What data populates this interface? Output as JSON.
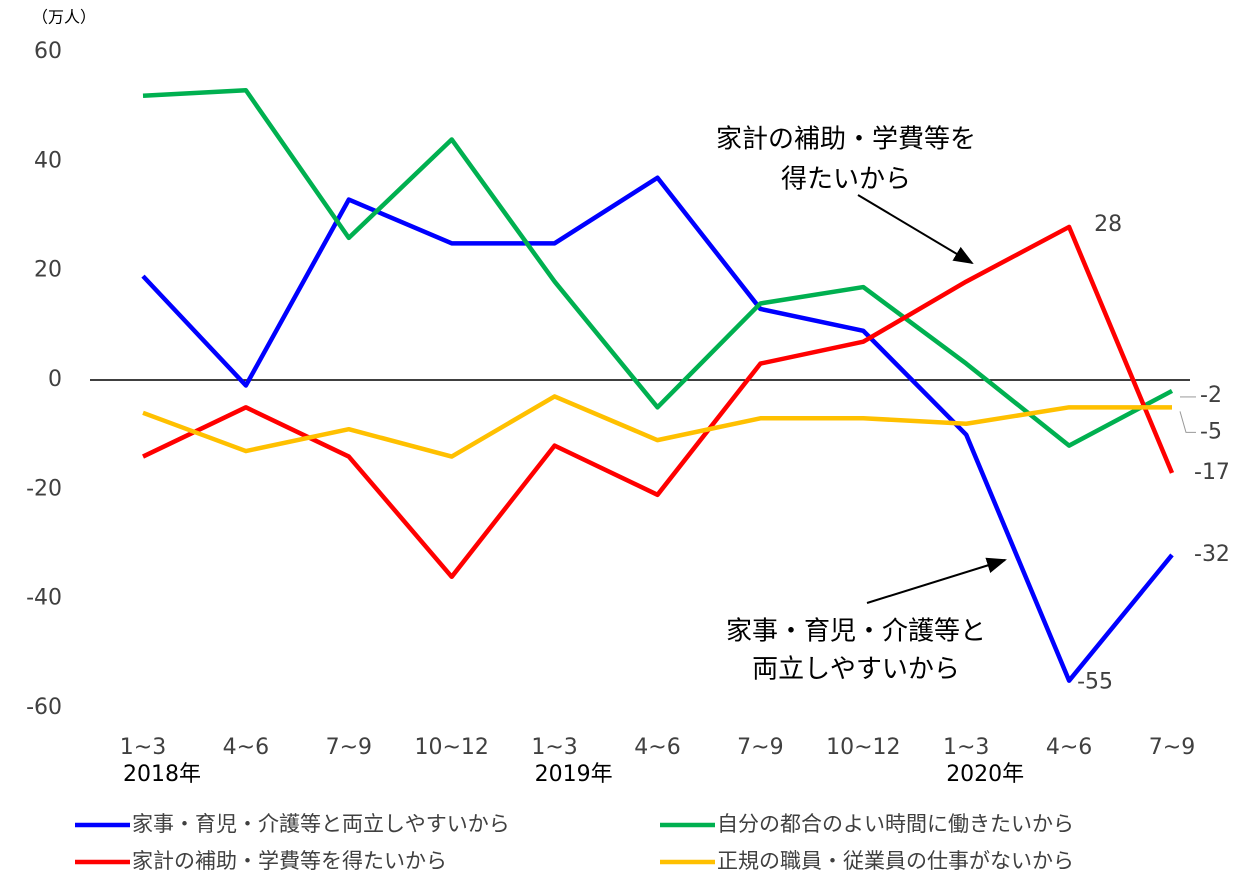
{
  "chart_data": {
    "type": "line",
    "unit_label": "（万人）",
    "categories": [
      "1~3",
      "4~6",
      "7~9",
      "10~12",
      "1~3",
      "4~6",
      "7~9",
      "10~12",
      "1~3",
      "4~6",
      "7~9"
    ],
    "year_labels": [
      "2018年",
      null,
      null,
      null,
      "2019年",
      null,
      null,
      null,
      "2020年",
      null,
      null
    ],
    "ylim": [
      -60,
      60
    ],
    "yticks": [
      -60,
      -40,
      -20,
      0,
      20,
      40,
      60
    ],
    "series": [
      {
        "name": "家事・育児・介護等と両立しやすいから",
        "color": "#0000ff",
        "values": [
          19,
          -1,
          33,
          25,
          25,
          37,
          13,
          9,
          -10,
          -55,
          -32
        ]
      },
      {
        "name": "自分の都合のよい時間に働きたいから",
        "color": "#00b050",
        "values": [
          52,
          53,
          26,
          44,
          18,
          -5,
          14,
          17,
          3,
          -12,
          -2
        ]
      },
      {
        "name": "家計の補助・学費等を得たいから",
        "color": "#ff0000",
        "values": [
          -14,
          -5,
          -14,
          -36,
          -12,
          -21,
          3,
          7,
          18,
          28,
          -17
        ]
      },
      {
        "name": "正規の職員・従業員の仕事がないから",
        "color": "#ffc000",
        "values": [
          -6,
          -13,
          -9,
          -14,
          -3,
          -11,
          -7,
          -7,
          -8,
          -5,
          -5
        ]
      }
    ],
    "annotations": [
      {
        "lines": [
          "家計の補助・学費等を",
          "得たいから"
        ]
      },
      {
        "lines": [
          "家事・育児・介護等と",
          "両立しやすいから"
        ]
      }
    ]
  }
}
